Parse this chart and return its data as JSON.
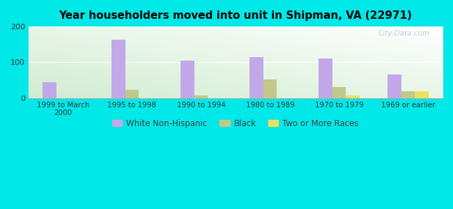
{
  "title": "Year householders moved into unit in Shipman, VA (22971)",
  "categories": [
    "1999 to March\n2000",
    "1995 to 1998",
    "1990 to 1994",
    "1980 to 1989",
    "1970 to 1979",
    "1969 or earlier"
  ],
  "white_non_hispanic": [
    45,
    163,
    105,
    115,
    110,
    65
  ],
  "black": [
    0,
    22,
    8,
    52,
    30,
    20
  ],
  "two_or_more": [
    0,
    0,
    0,
    0,
    7,
    20
  ],
  "colors": {
    "white_non_hispanic": "#c2a8e8",
    "black": "#c0c88a",
    "two_or_more": "#eedf60",
    "background_outer": "#00e8e8",
    "legend_text": "#404040"
  },
  "ylim": [
    0,
    200
  ],
  "yticks": [
    0,
    100,
    200
  ],
  "bar_width": 0.2,
  "watermark": "City-Data.com",
  "figsize": [
    6.5,
    3.0
  ],
  "dpi": 100
}
